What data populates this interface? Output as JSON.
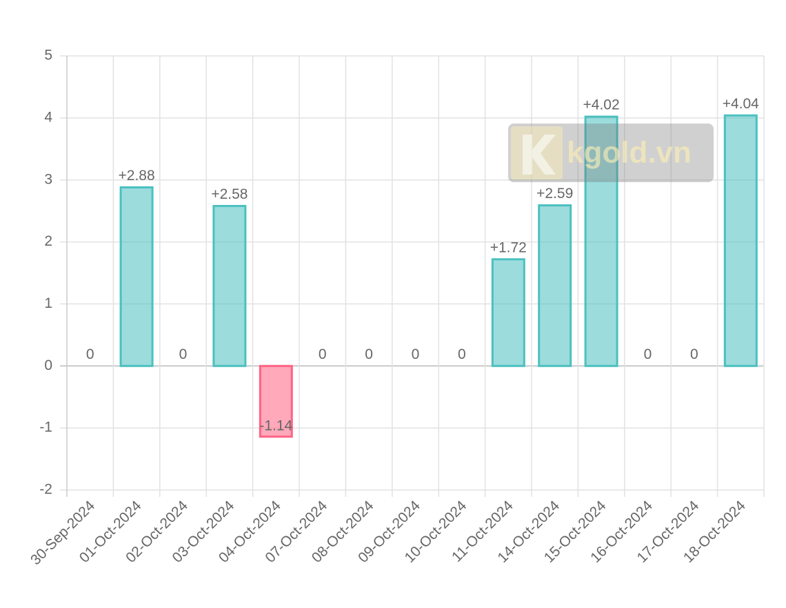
{
  "chart_data": {
    "type": "bar",
    "categories": [
      "30-Sep-2024",
      "01-Oct-2024",
      "02-Oct-2024",
      "03-Oct-2024",
      "04-Oct-2024",
      "07-Oct-2024",
      "08-Oct-2024",
      "09-Oct-2024",
      "10-Oct-2024",
      "11-Oct-2024",
      "14-Oct-2024",
      "15-Oct-2024",
      "16-Oct-2024",
      "17-Oct-2024",
      "18-Oct-2024"
    ],
    "values": [
      0,
      2.88,
      0,
      2.58,
      -1.14,
      0,
      0,
      0,
      0,
      1.72,
      2.59,
      4.02,
      0,
      0,
      4.04
    ],
    "value_labels": [
      "0",
      "+2.88",
      "0",
      "+2.58",
      "-1.14",
      "0",
      "0",
      "0",
      "0",
      "+1.72",
      "+2.59",
      "+4.02",
      "0",
      "0",
      "+4.04"
    ],
    "color": "#4bc0c0",
    "negative_color": "#ff6384",
    "ylim": [
      -2,
      5
    ],
    "yticks": [
      -2,
      -1,
      0,
      1,
      2,
      3,
      4,
      5
    ],
    "grid": true,
    "watermark": "kgold.vn"
  }
}
